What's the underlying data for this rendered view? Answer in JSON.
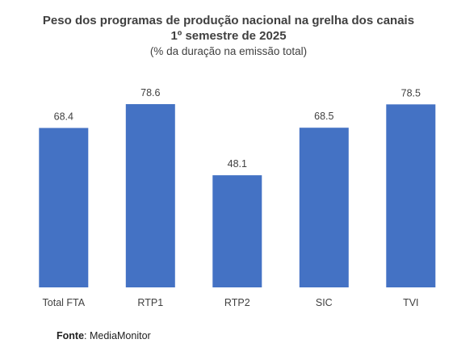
{
  "chart_data": {
    "type": "bar",
    "title": "Peso dos programas de produção nacional na grelha dos canais",
    "title_line2": "1º semestre de 2025",
    "subtitle": "(% da duração na emissão total)",
    "categories": [
      "Total FTA",
      "RTP1",
      "RTP2",
      "SIC",
      "TVI"
    ],
    "values": [
      68.4,
      78.6,
      48.1,
      68.5,
      78.5
    ],
    "ylim": [
      0,
      78.6
    ],
    "xlabel": "",
    "ylabel": "",
    "grid": false,
    "legend": "none",
    "bar_color": "#4472C4"
  },
  "source": {
    "label": "Fonte",
    "text": ": MediaMonitor"
  }
}
